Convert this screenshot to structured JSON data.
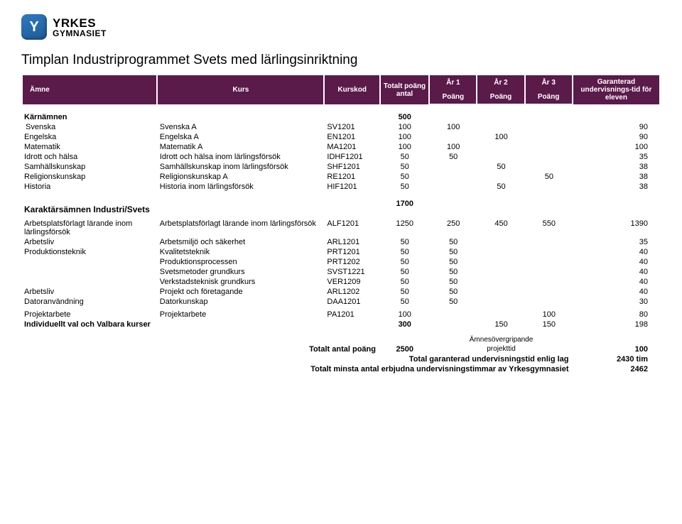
{
  "logo": {
    "letter": "Y",
    "brand": "YRKES",
    "sub": "GYMNASIET"
  },
  "title": "Timplan Industriprogrammet Svets med lärlingsinriktning",
  "header": {
    "amne": "Ämne",
    "kurs": "Kurs",
    "kurskod": "Kurskod",
    "totalt": "Totalt poäng antal",
    "ar1": "År 1",
    "ar2": "År 2",
    "ar3": "År 3",
    "poang": "Poäng",
    "garanterad": "Garanterad undervisnings-tid för eleven"
  },
  "section1": {
    "title": "Kärnämnen",
    "total": "500",
    "rows": [
      {
        "amne": "Svenska",
        "kurs": "Svenska A",
        "kod": "SV1201",
        "tot": "100",
        "a1": "100",
        "a2": "",
        "a3": "",
        "gar": "90",
        "indent": true
      },
      {
        "amne": "Engelska",
        "kurs": "Engelska A",
        "kod": "EN1201",
        "tot": "100",
        "a1": "",
        "a2": "100",
        "a3": "",
        "gar": "90"
      },
      {
        "amne": "Matematik",
        "kurs": "Matematik A",
        "kod": "MA1201",
        "tot": "100",
        "a1": "100",
        "a2": "",
        "a3": "",
        "gar": "100"
      },
      {
        "amne": "Idrott och hälsa",
        "kurs": "Idrott och hälsa inom lärlingsförsök",
        "kod": "IDHF1201",
        "tot": "50",
        "a1": "50",
        "a2": "",
        "a3": "",
        "gar": "35"
      },
      {
        "amne": "Samhällskunskap",
        "kurs": "Samhällskunskap inom lärlingsförsök",
        "kod": "SHF1201",
        "tot": "50",
        "a1": "",
        "a2": "50",
        "a3": "",
        "gar": "38"
      },
      {
        "amne": "Religionskunskap",
        "kurs": "Religionskunskap A",
        "kod": "RE1201",
        "tot": "50",
        "a1": "",
        "a2": "",
        "a3": "50",
        "gar": "38"
      },
      {
        "amne": "Historia",
        "kurs": "Historia inom lärlingsförsök",
        "kod": "HIF1201",
        "tot": "50",
        "a1": "",
        "a2": "50",
        "a3": "",
        "gar": "38"
      }
    ]
  },
  "section2": {
    "title": "Karaktärsämnen Industri/Svets",
    "total": "1700",
    "rows": [
      {
        "amne": "Arbetsplatsförlagt lärande inom lärlingsförsök",
        "kurs": "Arbetsplatsförlagt lärande inom lärlingsförsök",
        "kod": "ALF1201",
        "tot": "1250",
        "a1": "250",
        "a2": "450",
        "a3": "550",
        "gar": "1390"
      },
      {
        "amne": "Arbetsliv",
        "kurs": "Arbetsmiljö och säkerhet",
        "kod": "ARL1201",
        "tot": "50",
        "a1": "50",
        "a2": "",
        "a3": "",
        "gar": "35"
      },
      {
        "amne": "Produktionsteknik",
        "kurs": "Kvalitetsteknik",
        "kod": "PRT1201",
        "tot": "50",
        "a1": "50",
        "a2": "",
        "a3": "",
        "gar": "40"
      },
      {
        "amne": "",
        "kurs": "Produktionsprocessen",
        "kod": "PRT1202",
        "tot": "50",
        "a1": "50",
        "a2": "",
        "a3": "",
        "gar": "40"
      },
      {
        "amne": "",
        "kurs": "Svetsmetoder grundkurs",
        "kod": "SVST1221",
        "tot": "50",
        "a1": "50",
        "a2": "",
        "a3": "",
        "gar": "40"
      },
      {
        "amne": "",
        "kurs": "Verkstadsteknisk grundkurs",
        "kod": "VER1209",
        "tot": "50",
        "a1": "50",
        "a2": "",
        "a3": "",
        "gar": "40"
      },
      {
        "amne": "Arbetsliv",
        "kurs": "Projekt och företagande",
        "kod": "ARL1202",
        "tot": "50",
        "a1": "50",
        "a2": "",
        "a3": "",
        "gar": "40"
      },
      {
        "amne": "Datoranvändning",
        "kurs": "Datorkunskap",
        "kod": "DAA1201",
        "tot": "50",
        "a1": "50",
        "a2": "",
        "a3": "",
        "gar": "30"
      }
    ],
    "projekt": {
      "amne": "Projektarbete",
      "kurs": "Projektarbete",
      "kod": "PA1201",
      "tot": "100",
      "a1": "",
      "a2": "",
      "a3": "100",
      "gar": "80"
    },
    "indiv": {
      "label": "Individuellt val och Valbara kurser",
      "tot": "300",
      "a2": "150",
      "a3": "150",
      "gar": "198"
    }
  },
  "footer": {
    "totLabel": "Totalt antal poäng",
    "totVal": "2500",
    "overLabel1": "Ämnesövergripande",
    "overLabel2": "projekttid",
    "overVal": "100",
    "lagLabel": "Total garanterad undervisningstid enlig lag",
    "lagVal": "2430 tim",
    "minLabel": "Totalt minsta antal erbjudna undervisningstimmar av Yrkesgymnasiet",
    "minVal": "2462"
  }
}
